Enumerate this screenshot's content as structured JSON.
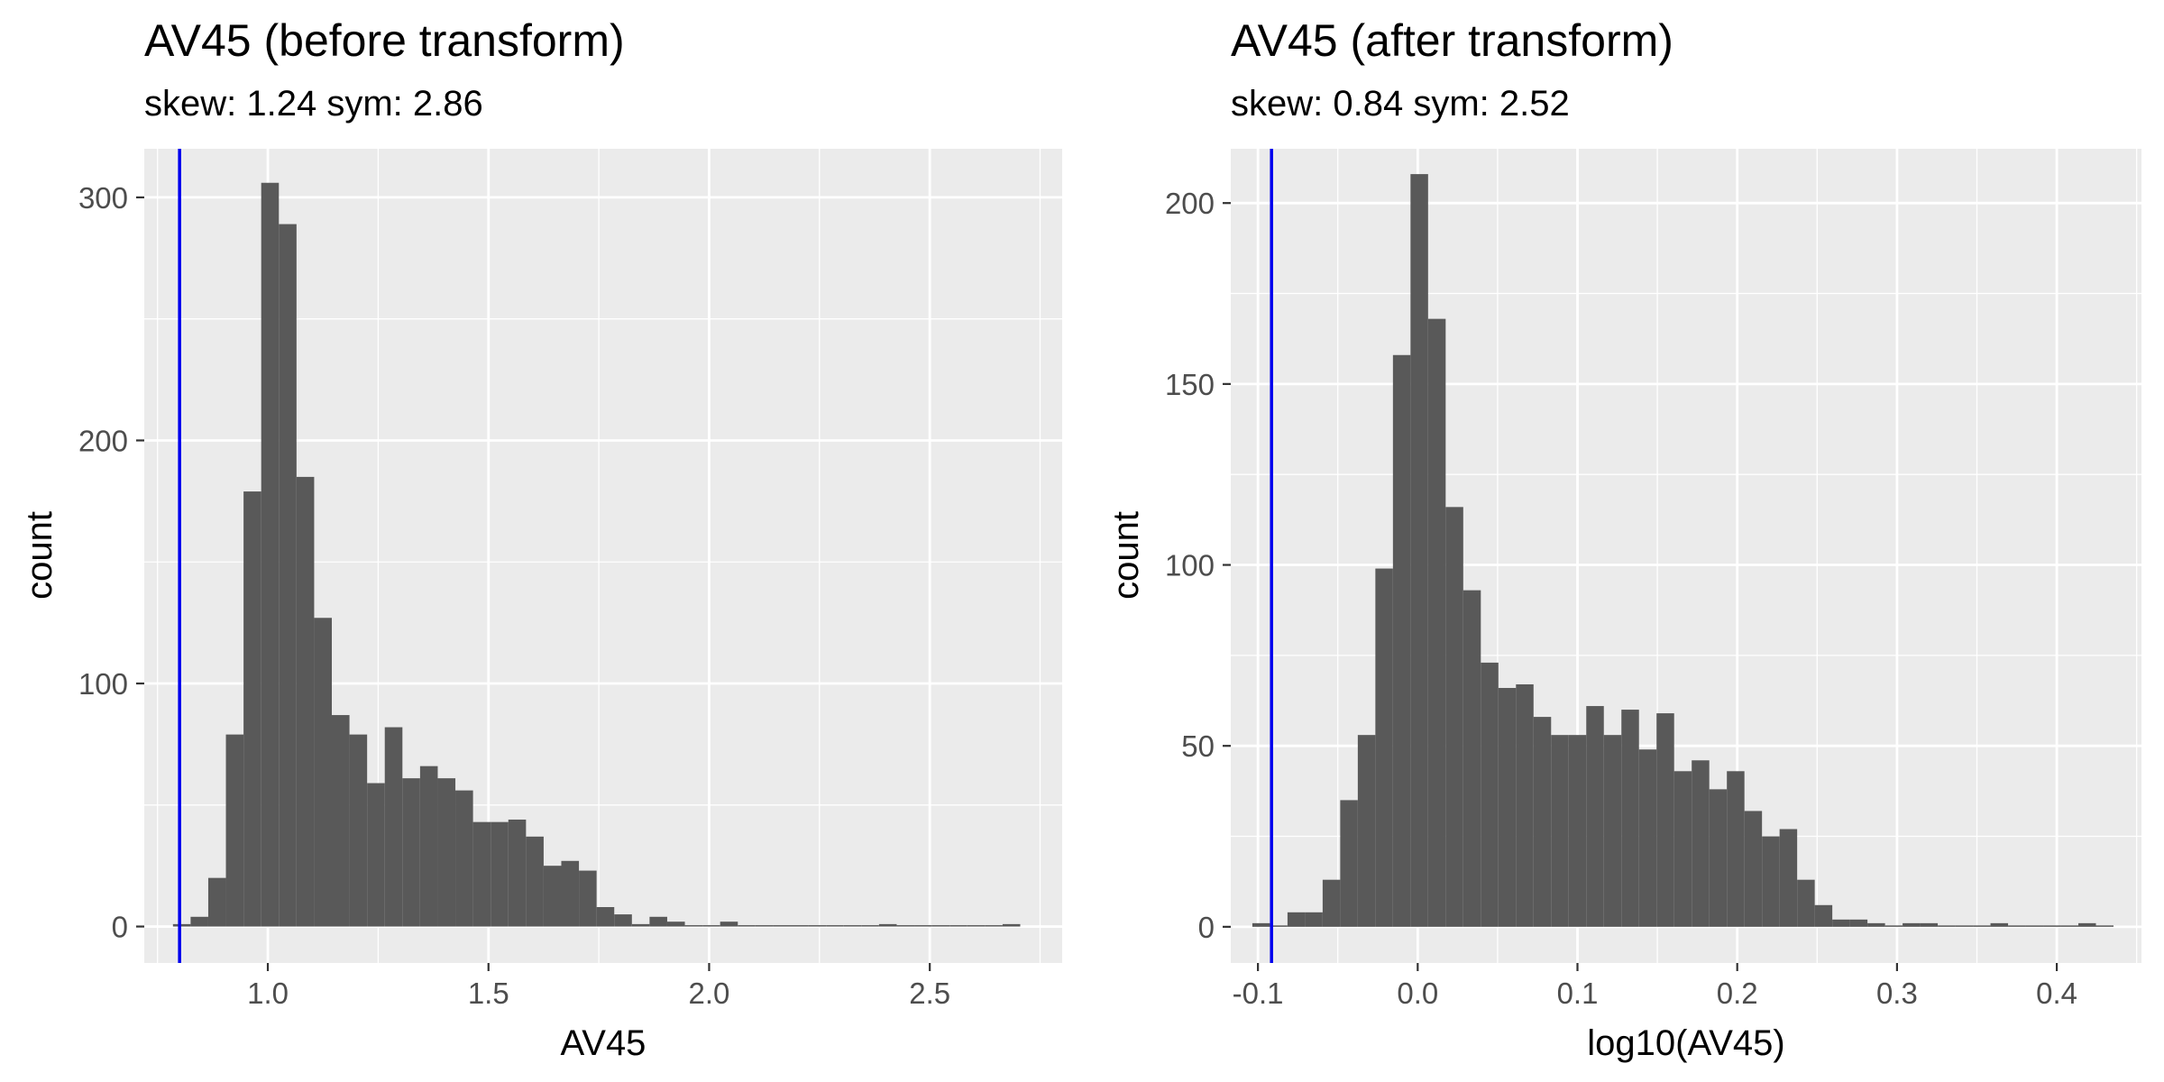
{
  "chart_data": [
    {
      "type": "bar",
      "title": "AV45 (before transform)",
      "subtitle": "skew: 1.24 sym: 2.86",
      "xlabel": "AV45",
      "ylabel": "count",
      "xlim": [
        0.72,
        2.8
      ],
      "ylim": [
        -15,
        320
      ],
      "x_ticks": [
        1.0,
        1.5,
        2.0,
        2.5
      ],
      "x_tick_labels": [
        "1.0",
        "1.5",
        "2.0",
        "2.5"
      ],
      "y_ticks": [
        0,
        100,
        200,
        300
      ],
      "y_tick_labels": [
        "0",
        "100",
        "200",
        "300"
      ],
      "grid": true,
      "reference_line_x": 0.8,
      "bar_color": "#595959",
      "line_color": "#0000ee",
      "bin_edges": [
        0.785,
        0.825,
        0.865,
        0.905,
        0.945,
        0.985,
        1.025,
        1.065,
        1.105,
        1.145,
        1.185,
        1.225,
        1.265,
        1.305,
        1.345,
        1.385,
        1.425,
        1.465,
        1.505,
        1.545,
        1.585,
        1.625,
        1.665,
        1.705,
        1.745,
        1.785,
        1.825,
        1.865,
        1.905,
        1.945,
        1.985,
        2.025,
        2.065,
        2.105,
        2.145,
        2.185,
        2.225,
        2.265,
        2.305,
        2.345,
        2.385,
        2.425,
        2.465,
        2.505,
        2.545,
        2.585,
        2.625,
        2.665,
        2.705
      ],
      "counts": [
        1,
        4,
        20,
        79,
        179,
        306,
        289,
        185,
        127,
        87,
        79,
        59,
        82,
        61,
        66,
        61,
        56,
        43,
        43,
        44,
        37,
        25,
        27,
        23,
        8,
        5,
        1,
        4,
        2,
        0,
        0,
        2,
        0,
        0,
        0,
        0,
        0,
        0,
        0,
        0,
        1,
        0,
        0,
        0,
        0,
        0,
        0,
        1
      ]
    },
    {
      "type": "bar",
      "title": "AV45 (after transform)",
      "subtitle": "skew: 0.84 sym: 2.52",
      "xlabel": "log10(AV45)",
      "ylabel": "count",
      "xlim": [
        -0.117,
        0.453
      ],
      "ylim": [
        -10,
        215
      ],
      "x_ticks": [
        -0.1,
        0.0,
        0.1,
        0.2,
        0.3,
        0.4
      ],
      "x_tick_labels": [
        "-0.1",
        "0.0",
        "0.1",
        "0.2",
        "0.3",
        "0.4"
      ],
      "y_ticks": [
        0,
        50,
        100,
        150,
        200
      ],
      "y_tick_labels": [
        "0",
        "50",
        "100",
        "150",
        "200"
      ],
      "grid": true,
      "reference_line_x": -0.0915,
      "bar_color": "#595959",
      "line_color": "#0000ee",
      "bin_edges": [
        -0.1035,
        -0.0925,
        -0.0815,
        -0.0705,
        -0.0595,
        -0.0485,
        -0.0375,
        -0.0265,
        -0.0155,
        -0.0045,
        0.0065,
        0.0175,
        0.0285,
        0.0395,
        0.0505,
        0.0615,
        0.0725,
        0.0835,
        0.0945,
        0.1055,
        0.1165,
        0.1275,
        0.1385,
        0.1495,
        0.1605,
        0.1715,
        0.1825,
        0.1935,
        0.2045,
        0.2155,
        0.2265,
        0.2375,
        0.2485,
        0.2595,
        0.2705,
        0.2815,
        0.2925,
        0.3035,
        0.3145,
        0.3255,
        0.3365,
        0.3475,
        0.3585,
        0.3695,
        0.3805,
        0.3915,
        0.4025,
        0.4135,
        0.4245,
        0.4355
      ],
      "counts": [
        1,
        0,
        4,
        4,
        13,
        35,
        53,
        99,
        158,
        208,
        168,
        116,
        93,
        73,
        66,
        67,
        58,
        53,
        53,
        61,
        53,
        60,
        49,
        59,
        43,
        46,
        38,
        43,
        32,
        25,
        27,
        13,
        6,
        2,
        2,
        1,
        0,
        1,
        1,
        0,
        0,
        0,
        1,
        0,
        0,
        0,
        0,
        1,
        0
      ]
    }
  ]
}
